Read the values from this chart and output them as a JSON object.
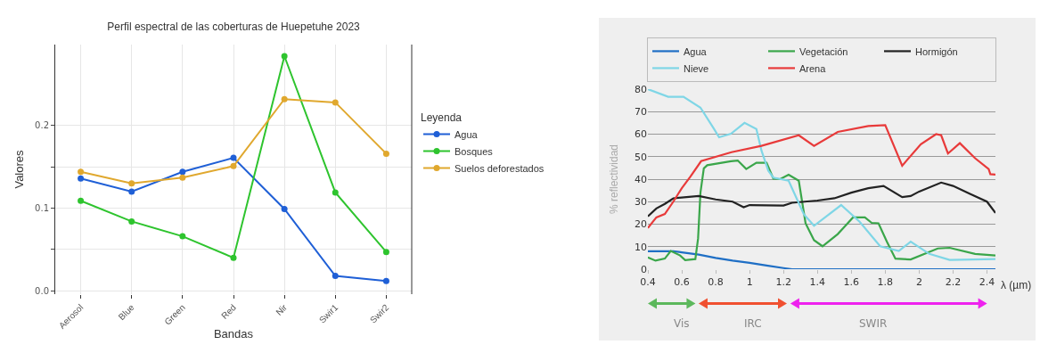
{
  "chart_data": [
    {
      "type": "line",
      "title": "Perfil espectral de las coberturas de Huepetuhe 2023",
      "xlabel": "Bandas",
      "ylabel": "Valores",
      "legend_title": "Leyenda",
      "categories": [
        "Aerosol",
        "Blue",
        "Green",
        "Red",
        "Nir",
        "Swir1",
        "Swir2"
      ],
      "series": [
        {
          "name": "Agua",
          "color": "#1f5fd6",
          "values": [
            0.136,
            0.12,
            0.144,
            0.161,
            0.099,
            0.018,
            0.012
          ]
        },
        {
          "name": "Bosques",
          "color": "#2ec42e",
          "values": [
            0.109,
            0.084,
            0.066,
            0.04,
            0.284,
            0.119,
            0.047
          ]
        },
        {
          "name": "Suelos deforestados",
          "color": "#e0a82e",
          "values": [
            0.144,
            0.13,
            0.137,
            0.151,
            0.232,
            0.228,
            0.166
          ]
        }
      ],
      "ylim": [
        -0.004,
        0.298
      ],
      "yticks": [
        {
          "value": 0,
          "label": "0.0"
        },
        {
          "value": 0.05,
          "label": null
        },
        0.1,
        {
          "value": 0.15,
          "label": null
        },
        0.2
      ],
      "grid": true,
      "legend": "right",
      "marker": "circle"
    },
    {
      "type": "line",
      "xlabel": "λ (µm)",
      "ylabel": "% reflectividad",
      "series": [
        {
          "name": "Agua",
          "color": "#1f6fc5",
          "x": [
            0.4,
            0.5,
            0.55,
            0.6,
            0.7,
            0.8,
            0.9,
            1.0,
            1.1,
            1.2,
            1.25,
            2.45
          ],
          "values": [
            8,
            8,
            8,
            7.5,
            6.5,
            5,
            3.8,
            2.8,
            1.6,
            0.5,
            0,
            0
          ]
        },
        {
          "name": "Vegetación",
          "color": "#3aa64a",
          "x": [
            0.4,
            0.445,
            0.5,
            0.535,
            0.59,
            0.62,
            0.68,
            0.696,
            0.71,
            0.73,
            0.75,
            0.89,
            0.93,
            0.98,
            1.04,
            1.1,
            1.14,
            1.18,
            1.23,
            1.29,
            1.33,
            1.38,
            1.43,
            1.52,
            1.61,
            1.68,
            1.72,
            1.76,
            1.81,
            1.86,
            1.95,
            2.11,
            2.18,
            2.33,
            2.45
          ],
          "values": [
            5.2,
            3.8,
            4.7,
            8.1,
            6.1,
            4,
            4.5,
            13.6,
            34,
            44.8,
            46.2,
            48,
            48.3,
            44.5,
            47.3,
            47.3,
            40.2,
            40,
            42,
            39.3,
            20.4,
            12.9,
            10.2,
            15.6,
            23,
            23,
            20.6,
            20.4,
            12.2,
            4.7,
            4.3,
            9.2,
            9.5,
            6.8,
            6.1
          ]
        },
        {
          "name": "Hormigón",
          "color": "#222222",
          "x": [
            0.4,
            0.45,
            0.5,
            0.55,
            0.7,
            0.8,
            0.9,
            0.965,
            1.0,
            1.2,
            1.25,
            1.4,
            1.5,
            1.6,
            1.7,
            1.79,
            1.9,
            1.95,
            2.0,
            2.13,
            2.2,
            2.3,
            2.4,
            2.45
          ],
          "values": [
            23.5,
            27,
            29,
            31.5,
            32.5,
            31,
            30,
            27.5,
            28.5,
            28.3,
            29.5,
            30.5,
            31.5,
            34,
            36,
            37,
            32,
            32.5,
            34.5,
            38.5,
            37,
            33.5,
            30,
            25
          ]
        },
        {
          "name": "Nieve",
          "color": "#7fd6e6",
          "x": [
            0.4,
            0.52,
            0.61,
            0.71,
            0.79,
            0.82,
            0.89,
            0.97,
            1.04,
            1.07,
            1.11,
            1.14,
            1.23,
            1.32,
            1.38,
            1.54,
            1.65,
            1.77,
            1.88,
            1.95,
            2.06,
            2.18,
            2.45
          ],
          "values": [
            80,
            76.6,
            76.6,
            71.8,
            62.3,
            58.6,
            60.2,
            65,
            62.3,
            52.7,
            43.8,
            40.7,
            39.3,
            24.4,
            19.3,
            28.5,
            21,
            10.2,
            8.1,
            12.2,
            6.8,
            4.1,
            4.5
          ]
        },
        {
          "name": "Arena",
          "color": "#e83a3a",
          "x": [
            0.4,
            0.45,
            0.5,
            0.55,
            0.6,
            0.65,
            0.714,
            0.893,
            1.07,
            1.29,
            1.38,
            1.52,
            1.7,
            1.8,
            1.9,
            2.01,
            2.1,
            2.13,
            2.17,
            2.24,
            2.33,
            2.41,
            2.42,
            2.45
          ],
          "values": [
            18.3,
            23,
            24.5,
            30,
            36,
            41,
            48,
            52,
            54.8,
            59.5,
            54.8,
            61,
            63.6,
            64,
            46,
            55.5,
            60,
            59.5,
            51.4,
            56,
            49.3,
            44.5,
            42.2,
            42
          ]
        }
      ],
      "xlim": [
        0.4,
        2.45
      ],
      "xticks": [
        0.4,
        0.6,
        0.8,
        1,
        1.2,
        1.4,
        1.6,
        1.8,
        2,
        2.2,
        2.4
      ],
      "ylim": [
        0,
        80
      ],
      "yticks": [
        0,
        10,
        20,
        30,
        40,
        50,
        60,
        70,
        80
      ],
      "grid": "y",
      "legend": "top",
      "annotations": [
        "Vis",
        "IRC",
        "SWIR"
      ]
    }
  ]
}
